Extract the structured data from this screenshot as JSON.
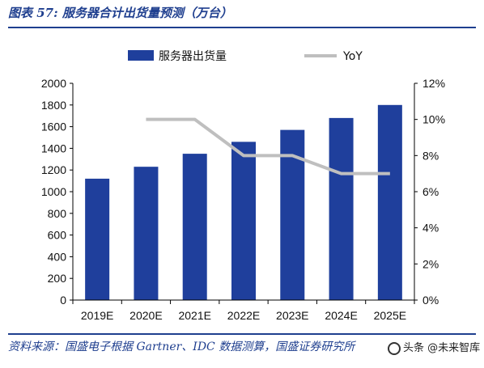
{
  "figure": {
    "title": "图表 57: 服务器合计出货量预测（万台）",
    "source": "资料来源：国盛电子根据 Gartner、IDC 数据测算，国盛证券研究所",
    "watermark_text": "头条 @未来智库"
  },
  "chart_data": {
    "type": "bar",
    "categories": [
      "2019E",
      "2020E",
      "2021E",
      "2022E",
      "2023E",
      "2024E",
      "2025E"
    ],
    "series": [
      {
        "name": "服务器出货量",
        "type": "bar",
        "axis": "left",
        "color": "#1f3f9c",
        "values": [
          1120,
          1230,
          1350,
          1460,
          1570,
          1680,
          1800
        ]
      },
      {
        "name": "YoY",
        "type": "line",
        "axis": "right",
        "color": "#bfbfbf",
        "values": [
          null,
          10,
          10,
          8,
          8,
          7,
          7
        ]
      }
    ],
    "y_left": {
      "min": 0,
      "max": 2000,
      "ticks": [
        "0",
        "200",
        "400",
        "600",
        "800",
        "1000",
        "1200",
        "1400",
        "1600",
        "1800",
        "2000"
      ]
    },
    "y_right": {
      "min": 0,
      "max": 12,
      "ticks": [
        "0%",
        "2%",
        "4%",
        "6%",
        "8%",
        "10%",
        "12%"
      ]
    },
    "legend_position": "top",
    "grid": false
  }
}
